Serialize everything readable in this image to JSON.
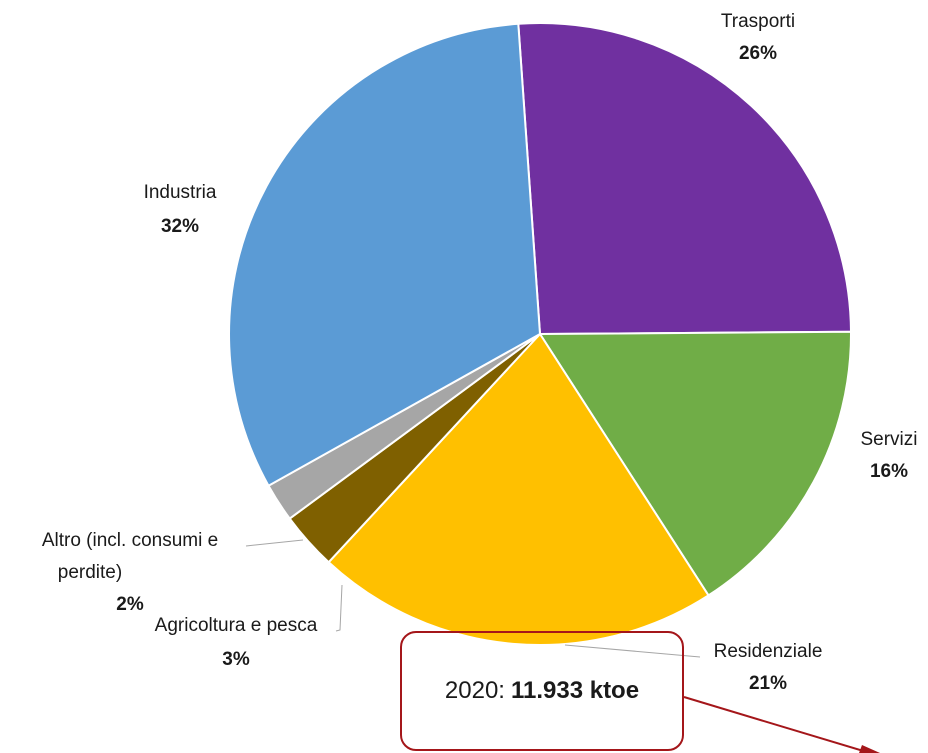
{
  "chart_data": {
    "type": "pie",
    "title": "",
    "start_angle_deg": 356,
    "direction": "clockwise",
    "slices": [
      {
        "label": "Trasporti",
        "value": 26,
        "pct_label": "26%",
        "color": "#7030a0"
      },
      {
        "label": "Servizi",
        "value": 16,
        "pct_label": "16%",
        "color": "#70ad47"
      },
      {
        "label": "Residenziale",
        "value": 21,
        "pct_label": "21%",
        "color": "#ffc000"
      },
      {
        "label": "Agricoltura e pesca",
        "value": 3,
        "pct_label": "3%",
        "color": "#7f6000"
      },
      {
        "label": "Altro (incl. consumi e perdite)",
        "value": 2,
        "pct_label": "2%",
        "color": "#a6a6a6"
      },
      {
        "label": "Industria",
        "value": 32,
        "pct_label": "32%",
        "color": "#5b9bd5"
      }
    ]
  },
  "annotation": {
    "year_text": "2020:",
    "total_text": "11.933 ktoe",
    "border_color": "#a4161a"
  }
}
